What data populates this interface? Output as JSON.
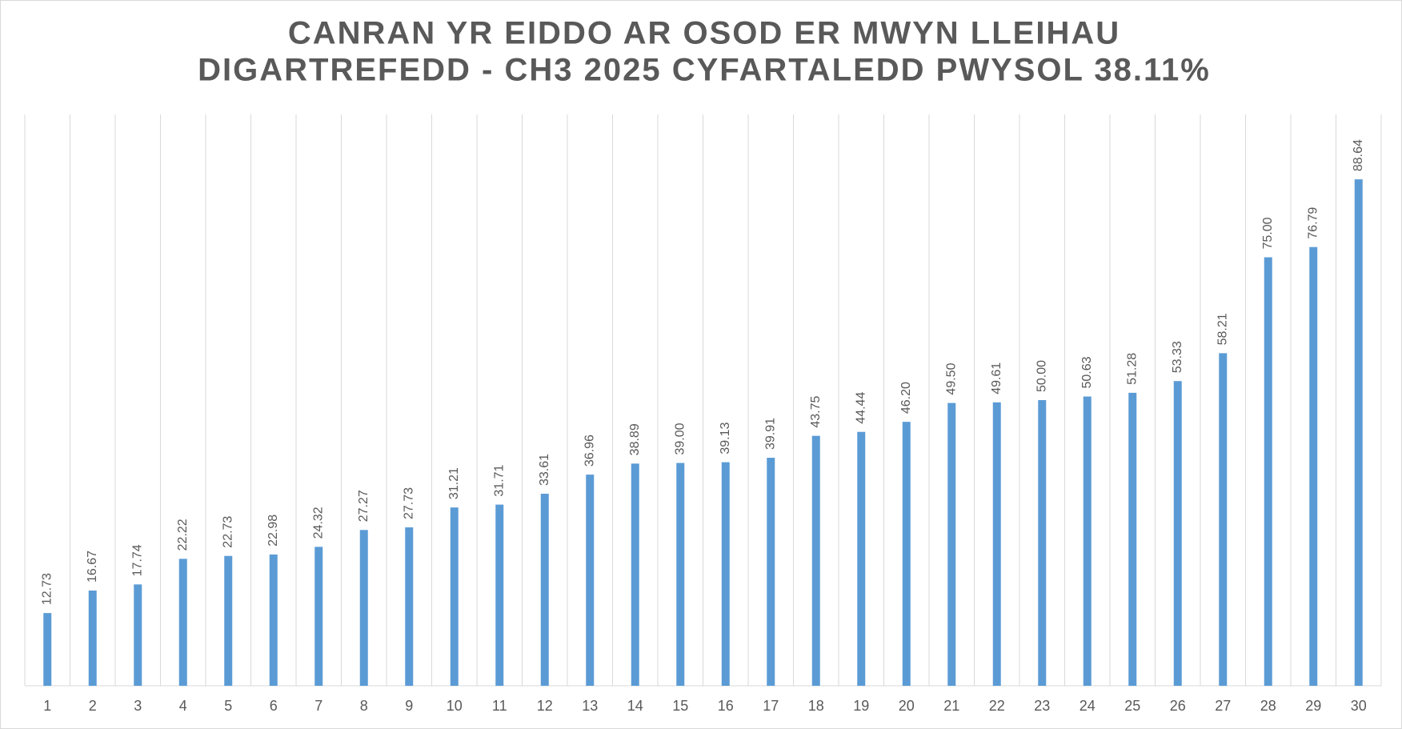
{
  "chart_data": {
    "type": "bar",
    "title": [
      "CANRAN YR EIDDO AR OSOD ER MWYN LLEIHAU",
      "DIGARTREFEDD - CH3 2025 CYFARTALEDD PWYSOL 38.11%"
    ],
    "categories": [
      "1",
      "2",
      "3",
      "4",
      "5",
      "6",
      "7",
      "8",
      "9",
      "10",
      "11",
      "12",
      "13",
      "14",
      "15",
      "16",
      "17",
      "18",
      "19",
      "20",
      "21",
      "22",
      "23",
      "24",
      "25",
      "26",
      "27",
      "28",
      "29",
      "30"
    ],
    "values": [
      12.73,
      16.67,
      17.74,
      22.22,
      22.73,
      22.98,
      24.32,
      27.27,
      27.73,
      31.21,
      31.71,
      33.61,
      36.96,
      38.89,
      39.0,
      39.13,
      39.91,
      43.75,
      44.44,
      46.2,
      49.5,
      49.61,
      50.0,
      50.63,
      51.28,
      53.33,
      58.21,
      75.0,
      76.79,
      88.64
    ],
    "value_labels": [
      "12.73",
      "16.67",
      "17.74",
      "22.22",
      "22.73",
      "22.98",
      "24.32",
      "27.27",
      "27.73",
      "31.21",
      "31.71",
      "33.61",
      "36.96",
      "38.89",
      "39.00",
      "39.13",
      "39.91",
      "43.75",
      "44.44",
      "46.20",
      "49.50",
      "49.61",
      "50.00",
      "50.63",
      "51.28",
      "53.33",
      "58.21",
      "75.00",
      "76.79",
      "88.64"
    ],
    "color": "#5b9bd5",
    "ylim": [
      0,
      100
    ],
    "grid": true
  }
}
